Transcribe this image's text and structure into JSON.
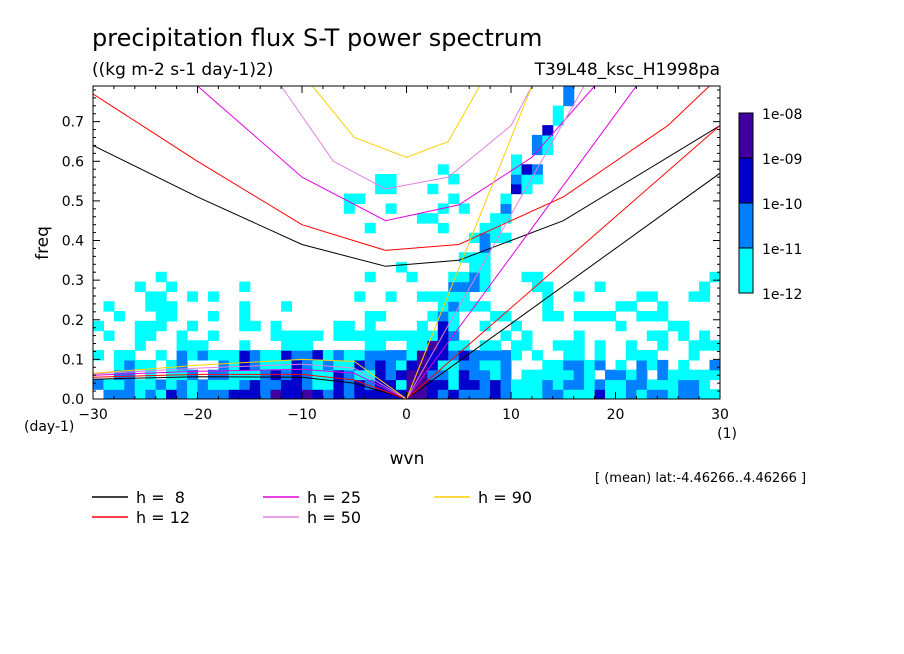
{
  "chart_data": {
    "type": "heatmap",
    "title": "precipitation flux S-T power spectrum",
    "subtitle": "((kg m-2 s-1 day-1)2)",
    "run_id": "T39L48_ksc_H1998pa",
    "xlabel": "wvn",
    "ylabel": "freq",
    "x_unit": "(1)",
    "y_unit": "(day-1)",
    "xlim": [
      -30,
      30
    ],
    "ylim": [
      0,
      0.79
    ],
    "x_ticks": [
      -30,
      -20,
      -10,
      0,
      10,
      20,
      30
    ],
    "y_ticks": [
      0.0,
      0.1,
      0.2,
      0.3,
      0.4,
      0.5,
      0.6,
      0.7
    ],
    "x_tick_labels": [
      "−30",
      "−20",
      "−10",
      "0",
      "10",
      "20",
      "30"
    ],
    "y_tick_labels": [
      "0.0",
      "0.1",
      "0.2",
      "0.3",
      "0.4",
      "0.5",
      "0.6",
      "0.7"
    ],
    "colorbar": {
      "levels": [
        "1e-12",
        "1e-11",
        "1e-10",
        "1e-09",
        "1e-08"
      ],
      "colors": [
        "#00ffff",
        "#0080ff",
        "#0000cc",
        "#4000a0"
      ]
    },
    "dispersion_curves": [
      {
        "name": "h =  8",
        "h": 8,
        "color": "#000000"
      },
      {
        "name": "h = 12",
        "h": 12,
        "color": "#ff0000"
      },
      {
        "name": "h = 25",
        "h": 25,
        "color": "#e000e0"
      },
      {
        "name": "h = 50",
        "h": 50,
        "color": "#e080e0"
      },
      {
        "name": "h = 90",
        "h": 90,
        "color": "#ffd000"
      }
    ],
    "kelvin_waves": [
      {
        "h": 8,
        "color": "#000000",
        "points": [
          [
            0,
            0.0
          ],
          [
            30,
            0.57
          ]
        ]
      },
      {
        "h": 12,
        "color": "#ff0000",
        "points": [
          [
            0,
            0.0
          ],
          [
            30,
            0.69
          ]
        ]
      },
      {
        "h": 25,
        "color": "#e000e0",
        "points": [
          [
            0,
            0.0
          ],
          [
            22,
            0.79
          ]
        ]
      },
      {
        "h": 50,
        "color": "#e080e0",
        "points": [
          [
            0,
            0.0
          ],
          [
            17,
            0.79
          ]
        ]
      },
      {
        "h": 90,
        "color": "#ffd000",
        "points": [
          [
            0,
            0.0
          ],
          [
            12,
            0.79
          ]
        ]
      }
    ],
    "ig_waves": [
      {
        "h": 8,
        "color": "#000000",
        "points": [
          [
            -30,
            0.64
          ],
          [
            -20,
            0.51
          ],
          [
            -10,
            0.39
          ],
          [
            -2,
            0.335
          ],
          [
            5,
            0.35
          ],
          [
            15,
            0.45
          ],
          [
            30,
            0.69
          ]
        ]
      },
      {
        "h": 12,
        "color": "#ff0000",
        "points": [
          [
            -30,
            0.77
          ],
          [
            -20,
            0.6
          ],
          [
            -10,
            0.44
          ],
          [
            -2,
            0.375
          ],
          [
            5,
            0.39
          ],
          [
            15,
            0.51
          ],
          [
            25,
            0.69
          ],
          [
            29,
            0.79
          ]
        ]
      },
      {
        "h": 25,
        "color": "#e000e0",
        "points": [
          [
            -20,
            0.79
          ],
          [
            -10,
            0.56
          ],
          [
            -2,
            0.45
          ],
          [
            5,
            0.49
          ],
          [
            12,
            0.61
          ],
          [
            18,
            0.79
          ]
        ]
      },
      {
        "h": 50,
        "color": "#e080e0",
        "points": [
          [
            -12,
            0.79
          ],
          [
            -7,
            0.6
          ],
          [
            -2,
            0.53
          ],
          [
            4,
            0.56
          ],
          [
            10,
            0.69
          ],
          [
            12,
            0.79
          ]
        ]
      },
      {
        "h": 90,
        "color": "#ffd000",
        "points": [
          [
            -9,
            0.79
          ],
          [
            -5,
            0.66
          ],
          [
            0,
            0.61
          ],
          [
            4,
            0.65
          ],
          [
            7,
            0.79
          ]
        ]
      }
    ],
    "rossby_waves": [
      {
        "h": 8,
        "color": "#000000",
        "points": [
          [
            -30,
            0.05
          ],
          [
            -20,
            0.056
          ],
          [
            -10,
            0.055
          ],
          [
            -5,
            0.04
          ],
          [
            0,
            0.0
          ]
        ]
      },
      {
        "h": 12,
        "color": "#ff0000",
        "points": [
          [
            -30,
            0.055
          ],
          [
            -20,
            0.062
          ],
          [
            -10,
            0.062
          ],
          [
            -5,
            0.048
          ],
          [
            0,
            0.0
          ]
        ]
      },
      {
        "h": 25,
        "color": "#e000e0",
        "points": [
          [
            -30,
            0.06
          ],
          [
            -20,
            0.07
          ],
          [
            -10,
            0.075
          ],
          [
            -5,
            0.065
          ],
          [
            0,
            0.0
          ]
        ]
      },
      {
        "h": 50,
        "color": "#e080e0",
        "points": [
          [
            -30,
            0.063
          ],
          [
            -20,
            0.078
          ],
          [
            -10,
            0.088
          ],
          [
            -5,
            0.078
          ],
          [
            0,
            0.0
          ]
        ]
      },
      {
        "h": 90,
        "color": "#ffd000",
        "points": [
          [
            -30,
            0.065
          ],
          [
            -20,
            0.085
          ],
          [
            -10,
            0.1
          ],
          [
            -5,
            0.095
          ],
          [
            0,
            0.0
          ]
        ]
      }
    ]
  },
  "annotation": "[ (mean) lat:-4.46266..4.46266 ]"
}
